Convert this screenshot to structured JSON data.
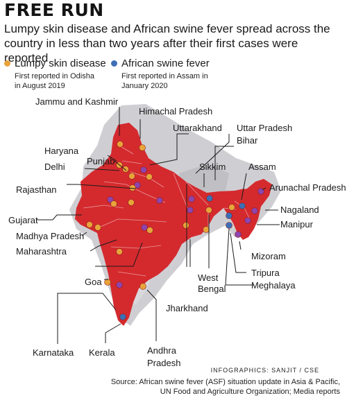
{
  "header": {
    "title": "FREE RUN",
    "subtitle": "Lumpy skin disease and African swine fever spread across the country in less than two years after their first cases were reported"
  },
  "legend": {
    "lsd": {
      "name": "Lumpy skin disease",
      "note_line1": "First reported in Odisha",
      "note_line2": "in August 2019",
      "color": "#e8a33a"
    },
    "asf": {
      "name": "African swine fever",
      "note_line1": "First reported in Assam in",
      "note_line2": "January 2020",
      "color": "#3d6fb5"
    }
  },
  "map": {
    "fill_color": "#d42a2e",
    "states": {
      "jammu_kashmir": "Jammu and Kashmir",
      "himachal_pradesh": "Himachal Pradesh",
      "uttarakhand": "Uttarakhand",
      "uttar_pradesh": "Uttar Pradesh",
      "bihar": "Bihar",
      "haryana": "Haryana",
      "delhi": "Delhi",
      "punjab": "Punjab",
      "sikkim": "Sikkim",
      "assam": "Assam",
      "arunachal_pradesh": "Arunachal Pradesh",
      "rajasthan": "Rajasthan",
      "nagaland": "Nagaland",
      "manipur": "Manipur",
      "gujarat": "Gujarat",
      "madhya_pradesh": "Madhya Pradesh",
      "maharashtra": "Maharashtra",
      "mizoram": "Mizoram",
      "tripura": "Tripura",
      "meghalaya": "Meghalaya",
      "goa": "Goa",
      "west_bengal_line1": "West",
      "west_bengal_line2": "Bengal",
      "jharkhand": "Jharkhand",
      "karnataka": "Karnataka",
      "kerala": "Kerala",
      "andhra_pradesh_line1": "Andhra",
      "andhra_pradesh_line2": "Pradesh"
    }
  },
  "footer": {
    "credit": "INFOGRAPHICS: SANJIT / CSE",
    "source_line1": "Source: African swine fever (ASF) situation update in Asia & Pacific,",
    "source_line2": "UN Food and Agriculture Organization; Media reports"
  }
}
